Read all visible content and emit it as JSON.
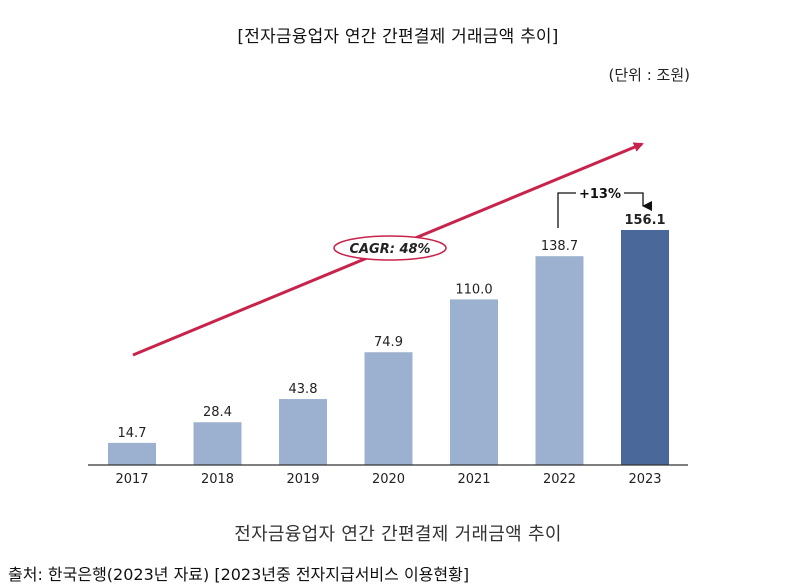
{
  "title": "[전자금융업자 연간 간편결제 거래금액 추이]",
  "unit_label": "(단위 : 조원)",
  "caption": "전자금융업자 연간 간편결제 거래금액 추이",
  "source": "출처: 한국은행(2023년 자료) [2023년중 전자지급서비스 이용현황]",
  "colors": {
    "bar": "#9cb0cf",
    "bar_highlight": "#4a6899",
    "arrow": "#c8234b",
    "axis": "#333333"
  },
  "chart_data": {
    "type": "bar",
    "categories": [
      "2017",
      "2018",
      "2019",
      "2020",
      "2021",
      "2022",
      "2023"
    ],
    "values": [
      14.7,
      28.4,
      43.8,
      74.9,
      110.0,
      138.7,
      156.1
    ],
    "value_labels": [
      "14.7",
      "28.4",
      "43.8",
      "74.9",
      "110.0",
      "138.7",
      "156.1"
    ],
    "highlight_index": 6,
    "ylim": [
      0,
      160
    ],
    "grid": false,
    "legend": "none",
    "annotations": {
      "cagr": "CAGR: 48%",
      "growth": "+13%"
    }
  }
}
